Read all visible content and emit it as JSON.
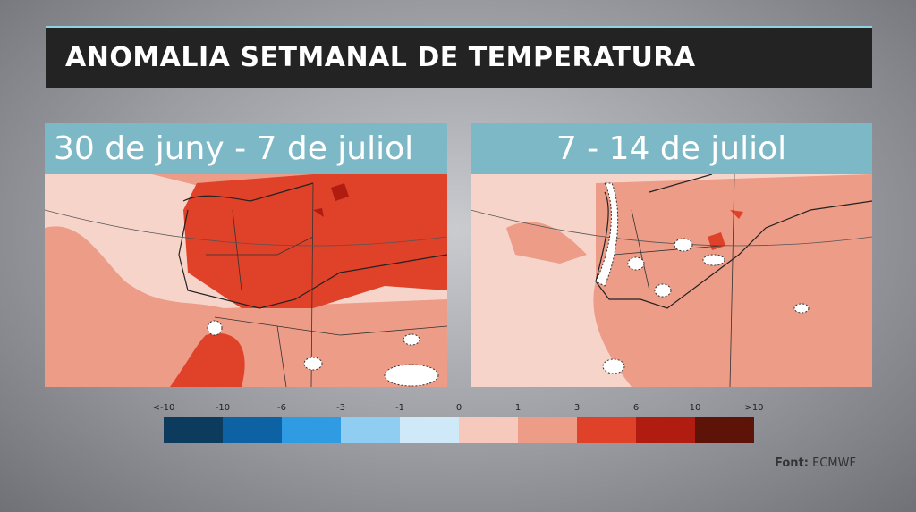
{
  "header": {
    "title": "ANOMALIA SETMANAL DE TEMPERATURA"
  },
  "panels": [
    {
      "title": "30 de juny - 7 de juliol"
    },
    {
      "title": "7 - 14 de juliol"
    }
  ],
  "legend": {
    "labels": [
      "<-10",
      "-10",
      "-6",
      "-3",
      "-1",
      "0",
      "1",
      "3",
      "6",
      "10",
      ">10"
    ],
    "colors": [
      "#0d3b5e",
      "#0d62a3",
      "#2e9be3",
      "#8fcdf3",
      "#cfe9f8",
      "#f7c9bd",
      "#ec9c87",
      "#df4129",
      "#b01c10",
      "#5e1309"
    ]
  },
  "source": {
    "label": "Font:",
    "name": "ECMWF"
  }
}
